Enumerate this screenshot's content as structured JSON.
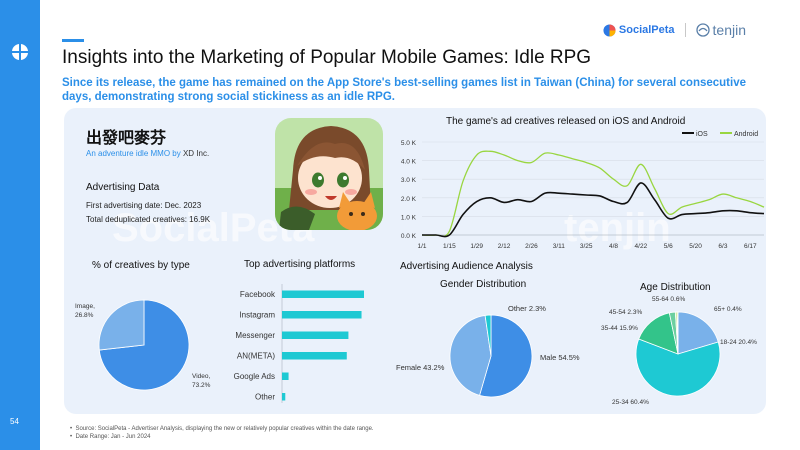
{
  "page_number": "54",
  "brand": {
    "socialpeta": "SocialPeta",
    "tenjin": "tenjin"
  },
  "watermark": {
    "socialpeta": "SocialPeta",
    "tenjin": "tenjin"
  },
  "title": "Insights into the Marketing of Popular Mobile Games: Idle RPG",
  "subtitle": "Since its release, the game has remained on the App Store's best-selling games list in Taiwan (China) for several consecutive days, demonstrating strong social stickiness as an idle RPG.",
  "game": {
    "name": "出發吧麥芬",
    "desc_prefix": "An adventure idle MMO by ",
    "publisher": "XD Inc.",
    "advertising_heading": "Advertising Data",
    "first_date": "First advertising date: Dec. 2023",
    "total": "Total deduplicated creatives: 16.9K"
  },
  "colors": {
    "accent": "#2b8fe8",
    "ios": "#111111",
    "android": "#99d640",
    "bar": "#1ec9d3",
    "pie_blue": "#3e8ee6",
    "pie_light": "#79b1ea"
  },
  "chart_data": [
    {
      "type": "line",
      "title": "The game's ad creatives released on iOS and Android",
      "x": [
        "1/1",
        "1/8",
        "1/15",
        "1/22",
        "1/29",
        "2/5",
        "2/12",
        "2/19",
        "2/26",
        "3/4",
        "3/11",
        "3/18",
        "3/25",
        "4/1",
        "4/8",
        "4/15",
        "4/22",
        "4/29",
        "5/6",
        "5/13",
        "5/20",
        "5/27",
        "6/3",
        "6/10",
        "6/17",
        "6/24"
      ],
      "x_tick_labels": [
        "1/1",
        "1/15",
        "1/29",
        "2/12",
        "2/26",
        "3/11",
        "3/25",
        "4/8",
        "4/22",
        "5/6",
        "5/20",
        "6/3",
        "6/17"
      ],
      "y_tick_labels": [
        "0.0 K",
        "1.0 K",
        "2.0 K",
        "3.0 K",
        "4.0 K",
        "5.0 K"
      ],
      "ylim": [
        0,
        5000
      ],
      "series": [
        {
          "name": "iOS",
          "values": [
            0,
            0,
            0,
            1100,
            1800,
            2000,
            1750,
            1900,
            1800,
            2250,
            2250,
            2200,
            2150,
            2100,
            1800,
            1750,
            2800,
            1900,
            900,
            1100,
            1150,
            1200,
            1300,
            1300,
            1200,
            1150
          ]
        },
        {
          "name": "Android",
          "values": [
            0,
            0,
            200,
            2900,
            4300,
            4500,
            4300,
            4000,
            3900,
            4400,
            4300,
            4100,
            3900,
            3600,
            3000,
            2650,
            3800,
            2500,
            1150,
            1500,
            1700,
            1900,
            2200,
            2000,
            1800,
            1500
          ]
        }
      ]
    },
    {
      "type": "pie",
      "title": "% of creatives by type",
      "labels": [
        "Video",
        "Image"
      ],
      "values": [
        73.2,
        26.8
      ],
      "display_labels": [
        [
          "Video,",
          "73.2%"
        ],
        [
          "Image,",
          "26.8%"
        ]
      ]
    },
    {
      "type": "bar",
      "orientation": "horizontal",
      "title": "Top advertising platforms",
      "categories": [
        "Facebook",
        "Instagram",
        "Messenger",
        "AN(META)",
        "Google Ads",
        "Other"
      ],
      "values": [
        100,
        97,
        81,
        79,
        8,
        4
      ],
      "note": "relative values, no axis shown"
    },
    {
      "type": "pie",
      "section_title": "Advertising Audience Analysis",
      "title": "Gender Distribution",
      "labels": [
        "Male",
        "Female",
        "Other"
      ],
      "values": [
        54.5,
        43.2,
        2.3
      ],
      "display_labels": [
        "Male 54.5%",
        "Female 43.2%",
        "Other 2.3%"
      ]
    },
    {
      "type": "pie",
      "title": "Age Distribution",
      "labels": [
        "18-24",
        "25-34",
        "35-44",
        "45-54",
        "55-64",
        "65+"
      ],
      "values": [
        20.4,
        60.4,
        15.9,
        2.3,
        0.6,
        0.4
      ],
      "display_labels": [
        "18-24 20.4%",
        "25-34 60.4%",
        "35-44 15.9%",
        "45-54 2.3%",
        "55-64 0.6%",
        "65+ 0.4%"
      ]
    }
  ],
  "footnotes": [
    "Source: SocialPeta - Advertiser Analysis, displaying the new or relatively popular creatives within the date range.",
    "Date Range: Jan - Jun 2024"
  ]
}
